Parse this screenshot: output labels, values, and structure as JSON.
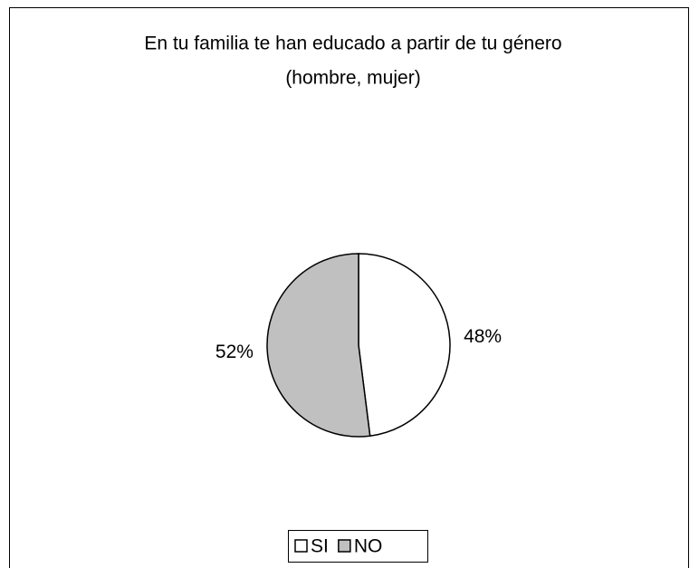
{
  "chart_data": {
    "type": "pie",
    "title": [
      "En tu familia te han educado a partir de tu género",
      "(hombre, mujer)"
    ],
    "categories": [
      "SI",
      "NO"
    ],
    "values": [
      48,
      52
    ],
    "value_labels": [
      "48%",
      "52%"
    ],
    "colors": [
      "#ffffff",
      "#c0c0c0"
    ],
    "legend": "bottom"
  }
}
